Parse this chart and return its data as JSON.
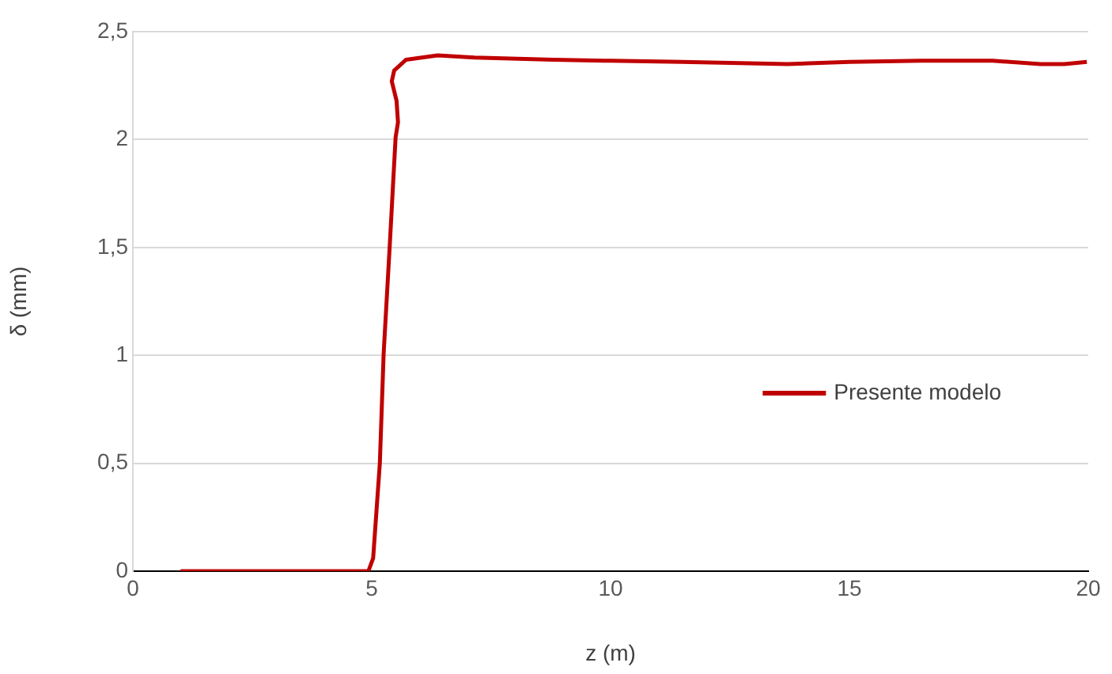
{
  "chart_data": {
    "type": "line",
    "xlabel": "z (m)",
    "ylabel": "δ (mm)",
    "xlim": [
      0,
      20
    ],
    "xticks": [
      0,
      5,
      10,
      15,
      20
    ],
    "ylim": [
      0,
      2.5
    ],
    "yticks": [
      0,
      {
        "value": 0.5,
        "label": "0,5"
      },
      1,
      {
        "value": 1.5,
        "label": "1,5"
      },
      2,
      {
        "value": 2.5,
        "label": "2,5"
      }
    ],
    "grid": "y",
    "legend": "right",
    "marker": "none",
    "line_style": "solid",
    "series": [
      {
        "name": "Presente modelo",
        "color": "#c00000",
        "x": [
          1,
          2,
          3,
          4,
          4.93,
          5.03,
          5.17,
          5.25,
          5.38,
          5.5,
          5.55,
          5.52,
          5.42,
          5.47,
          5.72,
          6.38,
          7.15,
          8.8,
          10,
          11.5,
          13.7,
          15,
          16.5,
          18,
          19,
          19.5,
          19.97
        ],
        "values": [
          0,
          0,
          0,
          0,
          0,
          0.06,
          0.5,
          1.01,
          1.52,
          2.01,
          2.08,
          2.18,
          2.27,
          2.32,
          2.37,
          2.39,
          2.38,
          2.37,
          2.365,
          2.36,
          2.35,
          2.36,
          2.365,
          2.365,
          2.35,
          2.35,
          2.36
        ]
      }
    ]
  }
}
